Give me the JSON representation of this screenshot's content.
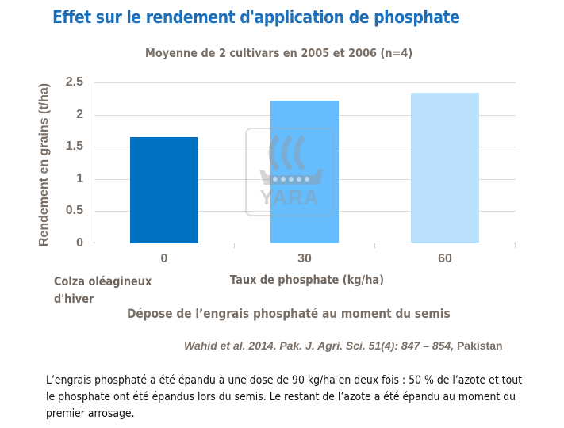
{
  "header": {
    "title": "Effet sur le rendement d'application de phosphate",
    "subtitle": "Moyenne de 2 cultivars en 2005 et 2006 (n=4)"
  },
  "chart_data": {
    "type": "bar",
    "title": "Effet sur le rendement d'application de phosphate",
    "subtitle": "Moyenne de 2 cultivars en 2005 et 2006 (n=4)",
    "categories": [
      "0",
      "30",
      "60"
    ],
    "values": [
      1.65,
      2.22,
      2.34
    ],
    "bar_colors": [
      "#0070c0",
      "#66bdfd",
      "#b9e0fc"
    ],
    "xlabel": "Taux de phosphate (kg/ha)",
    "ylabel": "Rendement en grains (t/ha)",
    "ylim": [
      0,
      2.5
    ],
    "yticks": [
      "0",
      "0.5",
      "1",
      "1.5",
      "2",
      "2.5"
    ],
    "grid": true,
    "legend": null
  },
  "labels": {
    "crop": [
      "Colza oléagineux",
      "d'hiver"
    ],
    "application_note": "Dépose de l’engrais phosphaté au moment du semis",
    "source_italic": "Wahid et al. 2014. Pak. J. Agri. Sci. 51(4): 847 – 854,",
    "source_country": " Pakistan",
    "watermark": "YARA"
  },
  "caption": "L’engrais phosphaté a été épandu à une dose de 90 kg/ha en deux fois : 50 % de l’azote et tout le phosphate ont été épandus lors du semis. Le restant de l’azote a été épandu au moment du premier arrosage.",
  "colors": {
    "title": "#1f6fb8",
    "axis_text": "#7a6f66",
    "gridline": "#dcdcdc"
  }
}
